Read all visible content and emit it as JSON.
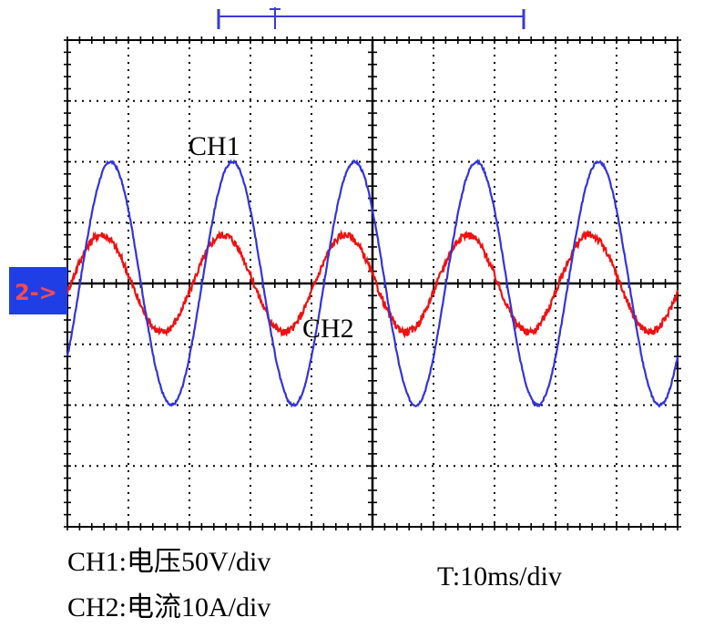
{
  "chart_data": {
    "type": "line",
    "title": "",
    "xlabel": "",
    "ylabel": "",
    "grid": true,
    "x_divisions": 10,
    "y_divisions": 8,
    "xlim": [
      0,
      10
    ],
    "ylim": [
      -4,
      4
    ],
    "series": [
      {
        "name": "CH1",
        "color": "#3333dd",
        "waveform": "sine",
        "amplitude_div": 2.0,
        "period_div": 2.0,
        "phase_deg": -37,
        "noise": 0.02
      },
      {
        "name": "CH2",
        "color": "#ee1111",
        "waveform": "sine",
        "amplitude_div": 0.8,
        "period_div": 2.0,
        "phase_deg": -10,
        "noise": 0.06
      }
    ],
    "ground_marker": "2->",
    "channel_labels": {
      "ch1": "CH1",
      "ch2": "CH2"
    }
  },
  "captions": {
    "ch1_scale": "CH1:电压50V/div",
    "ch2_scale": "CH2:电流10A/div",
    "time_scale": "T:10ms/div"
  },
  "colors": {
    "ch1": "#3333dd",
    "ch2": "#ee1111",
    "grid": "#000000",
    "marker_bg": "#1f3ee6",
    "cursor_bar": "#3a3ad8"
  }
}
